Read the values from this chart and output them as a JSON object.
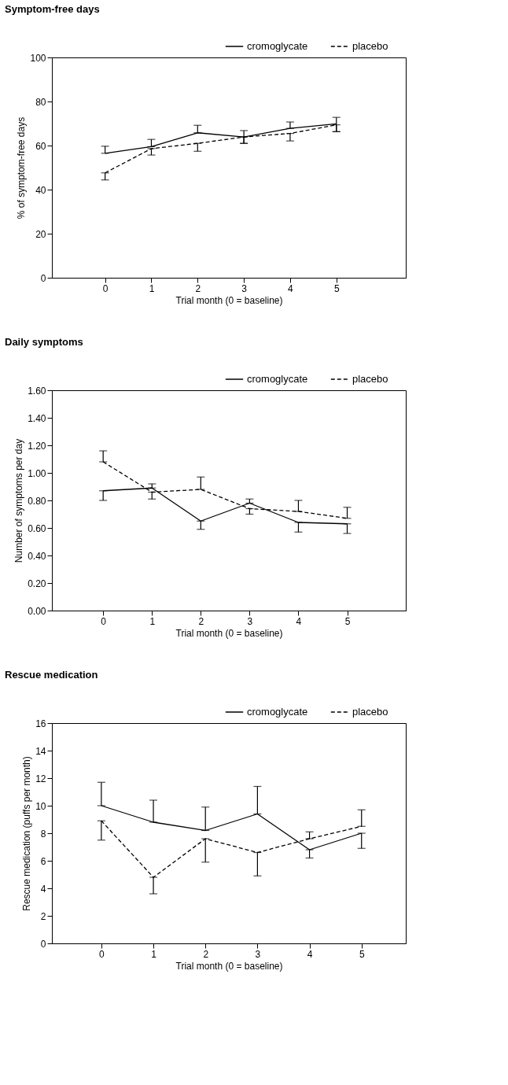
{
  "chart_data": [
    {
      "type": "line",
      "title": "Symptom-free days",
      "xlabel": "Trial month (0 = baseline)",
      "ylabel": "% of symptom-free days",
      "x": [
        0,
        1,
        2,
        3,
        4,
        5
      ],
      "xlim": [
        -1.15,
        6.5
      ],
      "xticks": [
        0,
        1,
        2,
        3,
        4,
        5
      ],
      "ylim": [
        0,
        100
      ],
      "yticks": [
        0,
        20,
        40,
        60,
        80,
        100
      ],
      "grid": false,
      "legend": "top right",
      "marker": "none",
      "series": [
        {
          "name": "cromoglycate",
          "color": "#000000",
          "line_style": "solid",
          "values": [
            56.5,
            59.5,
            65.8,
            63.9,
            67.8,
            69.9
          ],
          "errors": [
            [
              56.5,
              59.7
            ],
            [
              59.5,
              62.8
            ],
            [
              65.8,
              69.2
            ],
            [
              61,
              66.8
            ],
            [
              67.8,
              70.7
            ],
            [
              66.3,
              72.8
            ]
          ]
        },
        {
          "name": "placebo",
          "color": "#000000",
          "line_style": "dashed",
          "values": [
            47.6,
            58.6,
            61,
            63.9,
            65.5,
            69.4
          ],
          "errors": [
            [
              44.4,
              47.6
            ],
            [
              55.7,
              58.6
            ],
            [
              57.4,
              61
            ],
            [
              61,
              63.9
            ],
            [
              62.1,
              65.5
            ],
            [
              66.3,
              69.4
            ]
          ]
        }
      ]
    },
    {
      "type": "line",
      "title": "Daily symptoms",
      "xlabel": "Trial month (0 = baseline)",
      "ylabel": "Number of symptoms per day",
      "x": [
        0,
        1,
        2,
        3,
        4,
        5
      ],
      "xlim": [
        -1.05,
        6.2
      ],
      "xticks": [
        0,
        1,
        2,
        3,
        4,
        5
      ],
      "ylim": [
        0,
        1.6
      ],
      "yticks": [
        {
          "value": 0,
          "label": "0.00"
        },
        {
          "value": 0.2,
          "label": "0.20"
        },
        {
          "value": 0.4,
          "label": "0.40"
        },
        {
          "value": 0.6,
          "label": "0.60"
        },
        {
          "value": 0.8,
          "label": "0.80"
        },
        {
          "value": 1,
          "label": "1.00"
        },
        {
          "value": 1.2,
          "label": "1.20"
        },
        {
          "value": 1.4,
          "label": "1.40"
        },
        {
          "value": 1.6,
          "label": "1.60"
        }
      ],
      "grid": false,
      "legend": "top right",
      "marker": "none",
      "series": [
        {
          "name": "cromoglycate",
          "color": "#000000",
          "line_style": "solid",
          "values": [
            0.87,
            0.89,
            0.65,
            0.78,
            0.64,
            0.63
          ],
          "errors": [
            [
              0.8,
              0.87
            ],
            [
              0.89,
              0.92
            ],
            [
              0.59,
              0.65
            ],
            [
              0.78,
              0.81
            ],
            [
              0.57,
              0.64
            ],
            [
              0.56,
              0.63
            ]
          ]
        },
        {
          "name": "placebo",
          "color": "#000000",
          "line_style": "dashed",
          "values": [
            1.08,
            0.86,
            0.88,
            0.74,
            0.72,
            0.67
          ],
          "errors": [
            [
              1.08,
              1.16
            ],
            [
              0.81,
              0.86
            ],
            [
              0.88,
              0.97
            ],
            [
              0.7,
              0.74
            ],
            [
              0.72,
              0.8
            ],
            [
              0.67,
              0.75
            ]
          ]
        }
      ]
    },
    {
      "type": "line",
      "title": "Rescue medication",
      "xlabel": "Trial month (0 = baseline)",
      "ylabel": "Rescue medication (puffs per month)",
      "x": [
        0,
        1,
        2,
        3,
        4,
        5
      ],
      "xlim": [
        -0.95,
        5.85
      ],
      "xticks": [
        0,
        1,
        2,
        3,
        4,
        5
      ],
      "ylim": [
        0,
        16
      ],
      "yticks": [
        0,
        2,
        4,
        6,
        8,
        10,
        12,
        14,
        16
      ],
      "grid": false,
      "legend": "top right",
      "marker": "none",
      "series": [
        {
          "name": "cromoglycate",
          "color": "#000000",
          "line_style": "solid",
          "values": [
            10.0,
            8.8,
            8.2,
            9.4,
            6.8,
            8.0
          ],
          "errors": [
            [
              10.0,
              11.7
            ],
            [
              8.8,
              10.4
            ],
            [
              8.2,
              9.9
            ],
            [
              9.4,
              11.4
            ],
            [
              6.2,
              6.8
            ],
            [
              6.9,
              8.0
            ]
          ]
        },
        {
          "name": "placebo",
          "color": "#000000",
          "line_style": "dashed",
          "values": [
            8.9,
            4.8,
            7.6,
            6.6,
            7.6,
            8.5
          ],
          "errors": [
            [
              7.5,
              8.9
            ],
            [
              3.6,
              4.8
            ],
            [
              5.9,
              7.6
            ],
            [
              4.9,
              6.6
            ],
            [
              7.6,
              8.1
            ],
            [
              8.5,
              9.7
            ]
          ]
        }
      ]
    }
  ]
}
